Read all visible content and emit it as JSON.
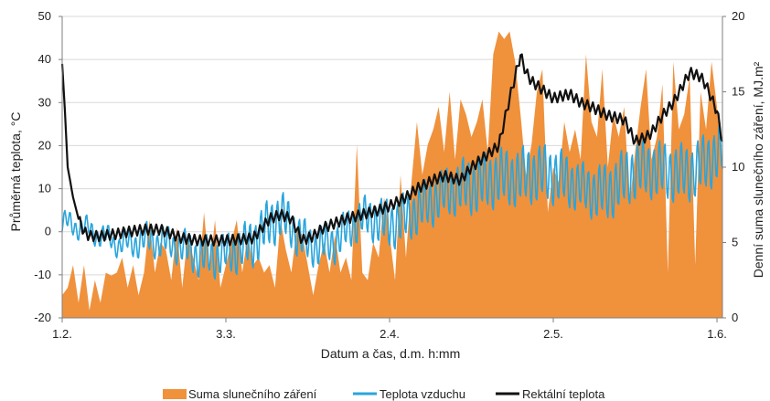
{
  "chart_data": {
    "type": "area+line",
    "xlabel": "Datum a čas, d.m. h:mm",
    "ylabel_left": "Průměrná teplota, °C",
    "ylabel_right": "Denní suma slunečního záření, MJ.m²",
    "x_ticks": [
      "1.2.",
      "3.3.",
      "2.4.",
      "2.5.",
      "1.6."
    ],
    "x_tick_days": [
      0,
      30,
      60,
      90,
      120
    ],
    "x_range_days": [
      0,
      121
    ],
    "y_left_ticks": [
      "50",
      "40",
      "30",
      "20",
      "10",
      "0",
      "-10",
      "-20"
    ],
    "y_left_range": [
      -20,
      50
    ],
    "y_right_ticks": [
      "20",
      "15",
      "10",
      "5",
      "0"
    ],
    "y_right_range": [
      0,
      20
    ],
    "grid": "horizontal",
    "legend_position": "bottom",
    "colors": {
      "radiation": "#F0913C",
      "air": "#29A5DD",
      "rectal": "#111111"
    },
    "series": [
      {
        "name": "Suma slunečního záření",
        "axis": "right",
        "style": "area",
        "x_day": [
          0,
          1,
          2,
          3,
          4,
          5,
          6,
          7,
          8,
          9,
          10,
          11,
          12,
          13,
          14,
          15,
          16,
          17,
          18,
          19,
          20,
          21,
          22,
          23,
          24,
          25,
          26,
          27,
          28,
          29,
          30,
          31,
          32,
          33,
          34,
          35,
          36,
          37,
          38,
          39,
          40,
          41,
          42,
          43,
          44,
          45,
          46,
          47,
          48,
          49,
          50,
          51,
          52,
          53,
          54,
          55,
          56,
          57,
          58,
          59,
          60,
          61,
          62,
          63,
          64,
          65,
          66,
          67,
          68,
          69,
          70,
          71,
          72,
          73,
          74,
          75,
          76,
          77,
          78,
          79,
          80,
          81,
          82,
          83,
          84,
          85,
          86,
          87,
          88,
          89,
          90,
          91,
          92,
          93,
          94,
          95,
          96,
          97,
          98,
          99,
          100,
          101,
          102,
          103,
          104,
          105,
          106,
          107,
          108,
          109,
          110,
          111,
          112,
          113,
          114,
          115,
          116,
          117,
          118,
          119,
          120,
          121
        ],
        "values": [
          1.5,
          2.0,
          3.5,
          1.0,
          3.5,
          0.5,
          2.5,
          1.0,
          3.0,
          2.8,
          3.0,
          4.0,
          2.0,
          3.5,
          1.5,
          3.0,
          6.5,
          3.0,
          5.0,
          4.5,
          2.5,
          6.0,
          2.0,
          5.5,
          4.0,
          2.5,
          7.0,
          3.0,
          6.5,
          2.0,
          3.5,
          5.0,
          6.5,
          3.0,
          5.5,
          3.5,
          4.0,
          3.0,
          3.5,
          2.0,
          6.5,
          4.5,
          3.0,
          6.0,
          5.5,
          3.5,
          1.5,
          3.5,
          5.0,
          3.0,
          5.5,
          3.0,
          4.0,
          2.5,
          11.5,
          3.0,
          2.5,
          5.0,
          4.0,
          8.0,
          5.5,
          2.5,
          9.5,
          4.0,
          9.0,
          13.0,
          9.5,
          11.5,
          12.5,
          14.0,
          11.0,
          15.0,
          10.5,
          14.5,
          13.5,
          12.0,
          13.0,
          14.5,
          11.0,
          17.5,
          19.0,
          18.5,
          19.0,
          17.0,
          13.5,
          9.5,
          11.5,
          15.0,
          16.5,
          7.0,
          10.0,
          9.0,
          13.0,
          11.0,
          12.5,
          10.5,
          17.5,
          13.0,
          12.0,
          16.5,
          10.0,
          13.5,
          12.0,
          14.0,
          7.5,
          11.0,
          14.0,
          16.5,
          10.5,
          12.0,
          15.5,
          3.0,
          17.0,
          12.5,
          13.5,
          16.0,
          3.5,
          15.0,
          12.5,
          17.0,
          14.0,
          10.0
        ]
      },
      {
        "name": "Teplota vzduchu",
        "axis": "left",
        "style": "line",
        "daily_mean_x_day": [
          0,
          5,
          10,
          15,
          20,
          25,
          30,
          35,
          40,
          45,
          50,
          55,
          60,
          65,
          70,
          75,
          80,
          85,
          90,
          95,
          100,
          105,
          110,
          115,
          121
        ],
        "daily_mean_values": [
          2,
          -1,
          -2,
          -1,
          -4,
          -6,
          -4,
          -3,
          3,
          -2,
          -2,
          2,
          2,
          6,
          8,
          10,
          14,
          13,
          12,
          11,
          10,
          13,
          14,
          15,
          18
        ],
        "daily_amplitude": [
          2,
          2,
          2,
          3,
          3,
          4,
          4,
          5,
          5,
          4,
          4,
          4,
          5,
          5,
          5,
          6,
          6,
          6,
          6,
          5,
          6,
          6,
          6,
          6,
          6
        ]
      },
      {
        "name": "Rektální teplota",
        "axis": "left",
        "style": "line",
        "x_day": [
          0,
          0.5,
          1,
          2,
          3,
          4,
          5,
          7,
          10,
          12,
          15,
          18,
          20,
          22,
          25,
          28,
          30,
          35,
          38,
          40,
          42,
          44,
          46,
          48,
          50,
          52,
          55,
          58,
          60,
          63,
          65,
          68,
          70,
          73,
          75,
          78,
          80,
          82,
          84,
          85,
          86,
          87,
          88,
          90,
          93,
          95,
          97,
          100,
          103,
          105,
          107,
          108,
          110,
          112,
          115,
          117,
          118,
          120,
          121
        ],
        "values": [
          39,
          28,
          15,
          8,
          3,
          0,
          -1,
          -1,
          -0.5,
          0,
          0.5,
          0.5,
          -0.5,
          -1.5,
          -2,
          -2,
          -2,
          -1.5,
          3,
          4,
          3,
          -2,
          -1,
          1,
          2,
          3,
          4,
          5,
          6,
          8,
          10,
          12,
          13,
          12,
          15,
          18,
          20,
          31,
          41,
          37,
          35,
          34,
          33,
          31,
          32,
          30,
          29,
          27,
          26,
          21,
          22,
          23,
          27,
          30,
          37,
          36,
          34,
          28,
          21
        ],
        "daily_amplitude": 1.2
      }
    ]
  }
}
